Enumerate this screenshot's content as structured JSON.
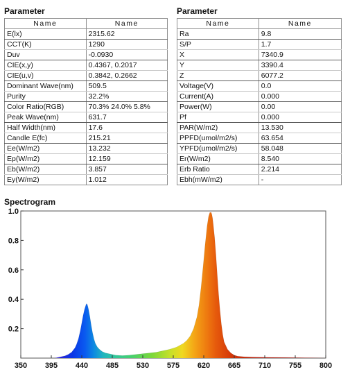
{
  "left_panel": {
    "title": "Parameter",
    "headers": [
      "Name",
      "Name"
    ],
    "rows": [
      [
        "E(lx)",
        "2315.62"
      ],
      [
        "CCT(K)",
        "1290"
      ],
      [
        "Duv",
        "-0.0930"
      ],
      [
        "CIE(x,y)",
        "0.4367, 0.2017"
      ],
      [
        "CIE(u,v)",
        "0.3842, 0.2662"
      ],
      [
        "Dominant Wave(nm)",
        "509.5"
      ],
      [
        "Purity",
        "32.2%"
      ],
      [
        "Color Ratio(RGB)",
        "70.3% 24.0% 5.8%"
      ],
      [
        "Peak Wave(nm)",
        "631.7"
      ],
      [
        "Half Width(nm)",
        "17.6"
      ],
      [
        "Candle E(fc)",
        "215.21"
      ],
      [
        "Ee(W/m2)",
        "13.232"
      ],
      [
        "Ep(W/m2)",
        "12.159"
      ],
      [
        "Eb(W/m2)",
        "3.857"
      ],
      [
        "Ey(W/m2)",
        "1.012"
      ]
    ]
  },
  "right_panel": {
    "title": "Parameter",
    "headers": [
      "Name",
      "Name"
    ],
    "rows": [
      [
        "Ra",
        "9.8"
      ],
      [
        "S/P",
        "1.7"
      ],
      [
        "X",
        "7340.9"
      ],
      [
        "Y",
        "3390.4"
      ],
      [
        "Z",
        "6077.2"
      ],
      [
        "Voltage(V)",
        "0.0"
      ],
      [
        "Current(A)",
        "0.000"
      ],
      [
        "Power(W)",
        "0.00"
      ],
      [
        "Pf",
        "0.000"
      ],
      [
        "PAR(W/m2)",
        "13.530"
      ],
      [
        "PPFD(umol/m2/s)",
        "63.654"
      ],
      [
        "YPFD(umol/m2/s)",
        "58.048"
      ],
      [
        "Er(W/m2)",
        "8.540"
      ],
      [
        "Erb Ratio",
        "2.214"
      ],
      [
        "Ebh(mW/m2)",
        "-"
      ]
    ]
  },
  "chart_data": {
    "type": "area",
    "title": "Spectrogram",
    "xlabel": "",
    "ylabel": "",
    "xlim": [
      350,
      800
    ],
    "ylim": [
      0,
      1.0
    ],
    "x_ticks": [
      350,
      395,
      440,
      485,
      530,
      575,
      620,
      665,
      710,
      755,
      800
    ],
    "y_ticks": [
      0.2,
      0.4,
      0.6,
      0.8,
      1.0
    ],
    "y_tick_labels": [
      "0.2",
      "0.4",
      "0.6",
      "0.8",
      "1.0"
    ],
    "grid": false,
    "series": [
      {
        "x": [
          400,
          410,
          415,
          420,
          425,
          430,
          432,
          435,
          438,
          440,
          442,
          444,
          446,
          447,
          448,
          449,
          450,
          452,
          454,
          456,
          458,
          460,
          463,
          466,
          470,
          475,
          480,
          485,
          490,
          500,
          510,
          520,
          530,
          540,
          550,
          560,
          570,
          580,
          590,
          595,
          600,
          605,
          610,
          613,
          616,
          619,
          622,
          625,
          627,
          629,
          631,
          632,
          633,
          634,
          636,
          638,
          640,
          642,
          644,
          646,
          648,
          650,
          655,
          660,
          665,
          670,
          680,
          690,
          700,
          720,
          740,
          760,
          780,
          800
        ],
        "y": [
          0.0,
          0.01,
          0.015,
          0.025,
          0.04,
          0.07,
          0.09,
          0.13,
          0.19,
          0.24,
          0.29,
          0.33,
          0.36,
          0.37,
          0.365,
          0.35,
          0.33,
          0.28,
          0.22,
          0.17,
          0.13,
          0.1,
          0.075,
          0.06,
          0.045,
          0.035,
          0.03,
          0.025,
          0.02,
          0.017,
          0.02,
          0.025,
          0.03,
          0.035,
          0.04,
          0.05,
          0.06,
          0.075,
          0.1,
          0.12,
          0.15,
          0.2,
          0.28,
          0.36,
          0.48,
          0.62,
          0.77,
          0.9,
          0.96,
          0.99,
          0.99,
          0.975,
          0.95,
          0.91,
          0.82,
          0.7,
          0.56,
          0.43,
          0.32,
          0.23,
          0.16,
          0.11,
          0.06,
          0.035,
          0.02,
          0.013,
          0.009,
          0.007,
          0.006,
          0.005,
          0.004,
          0.003,
          0.002,
          0.0
        ]
      }
    ]
  }
}
